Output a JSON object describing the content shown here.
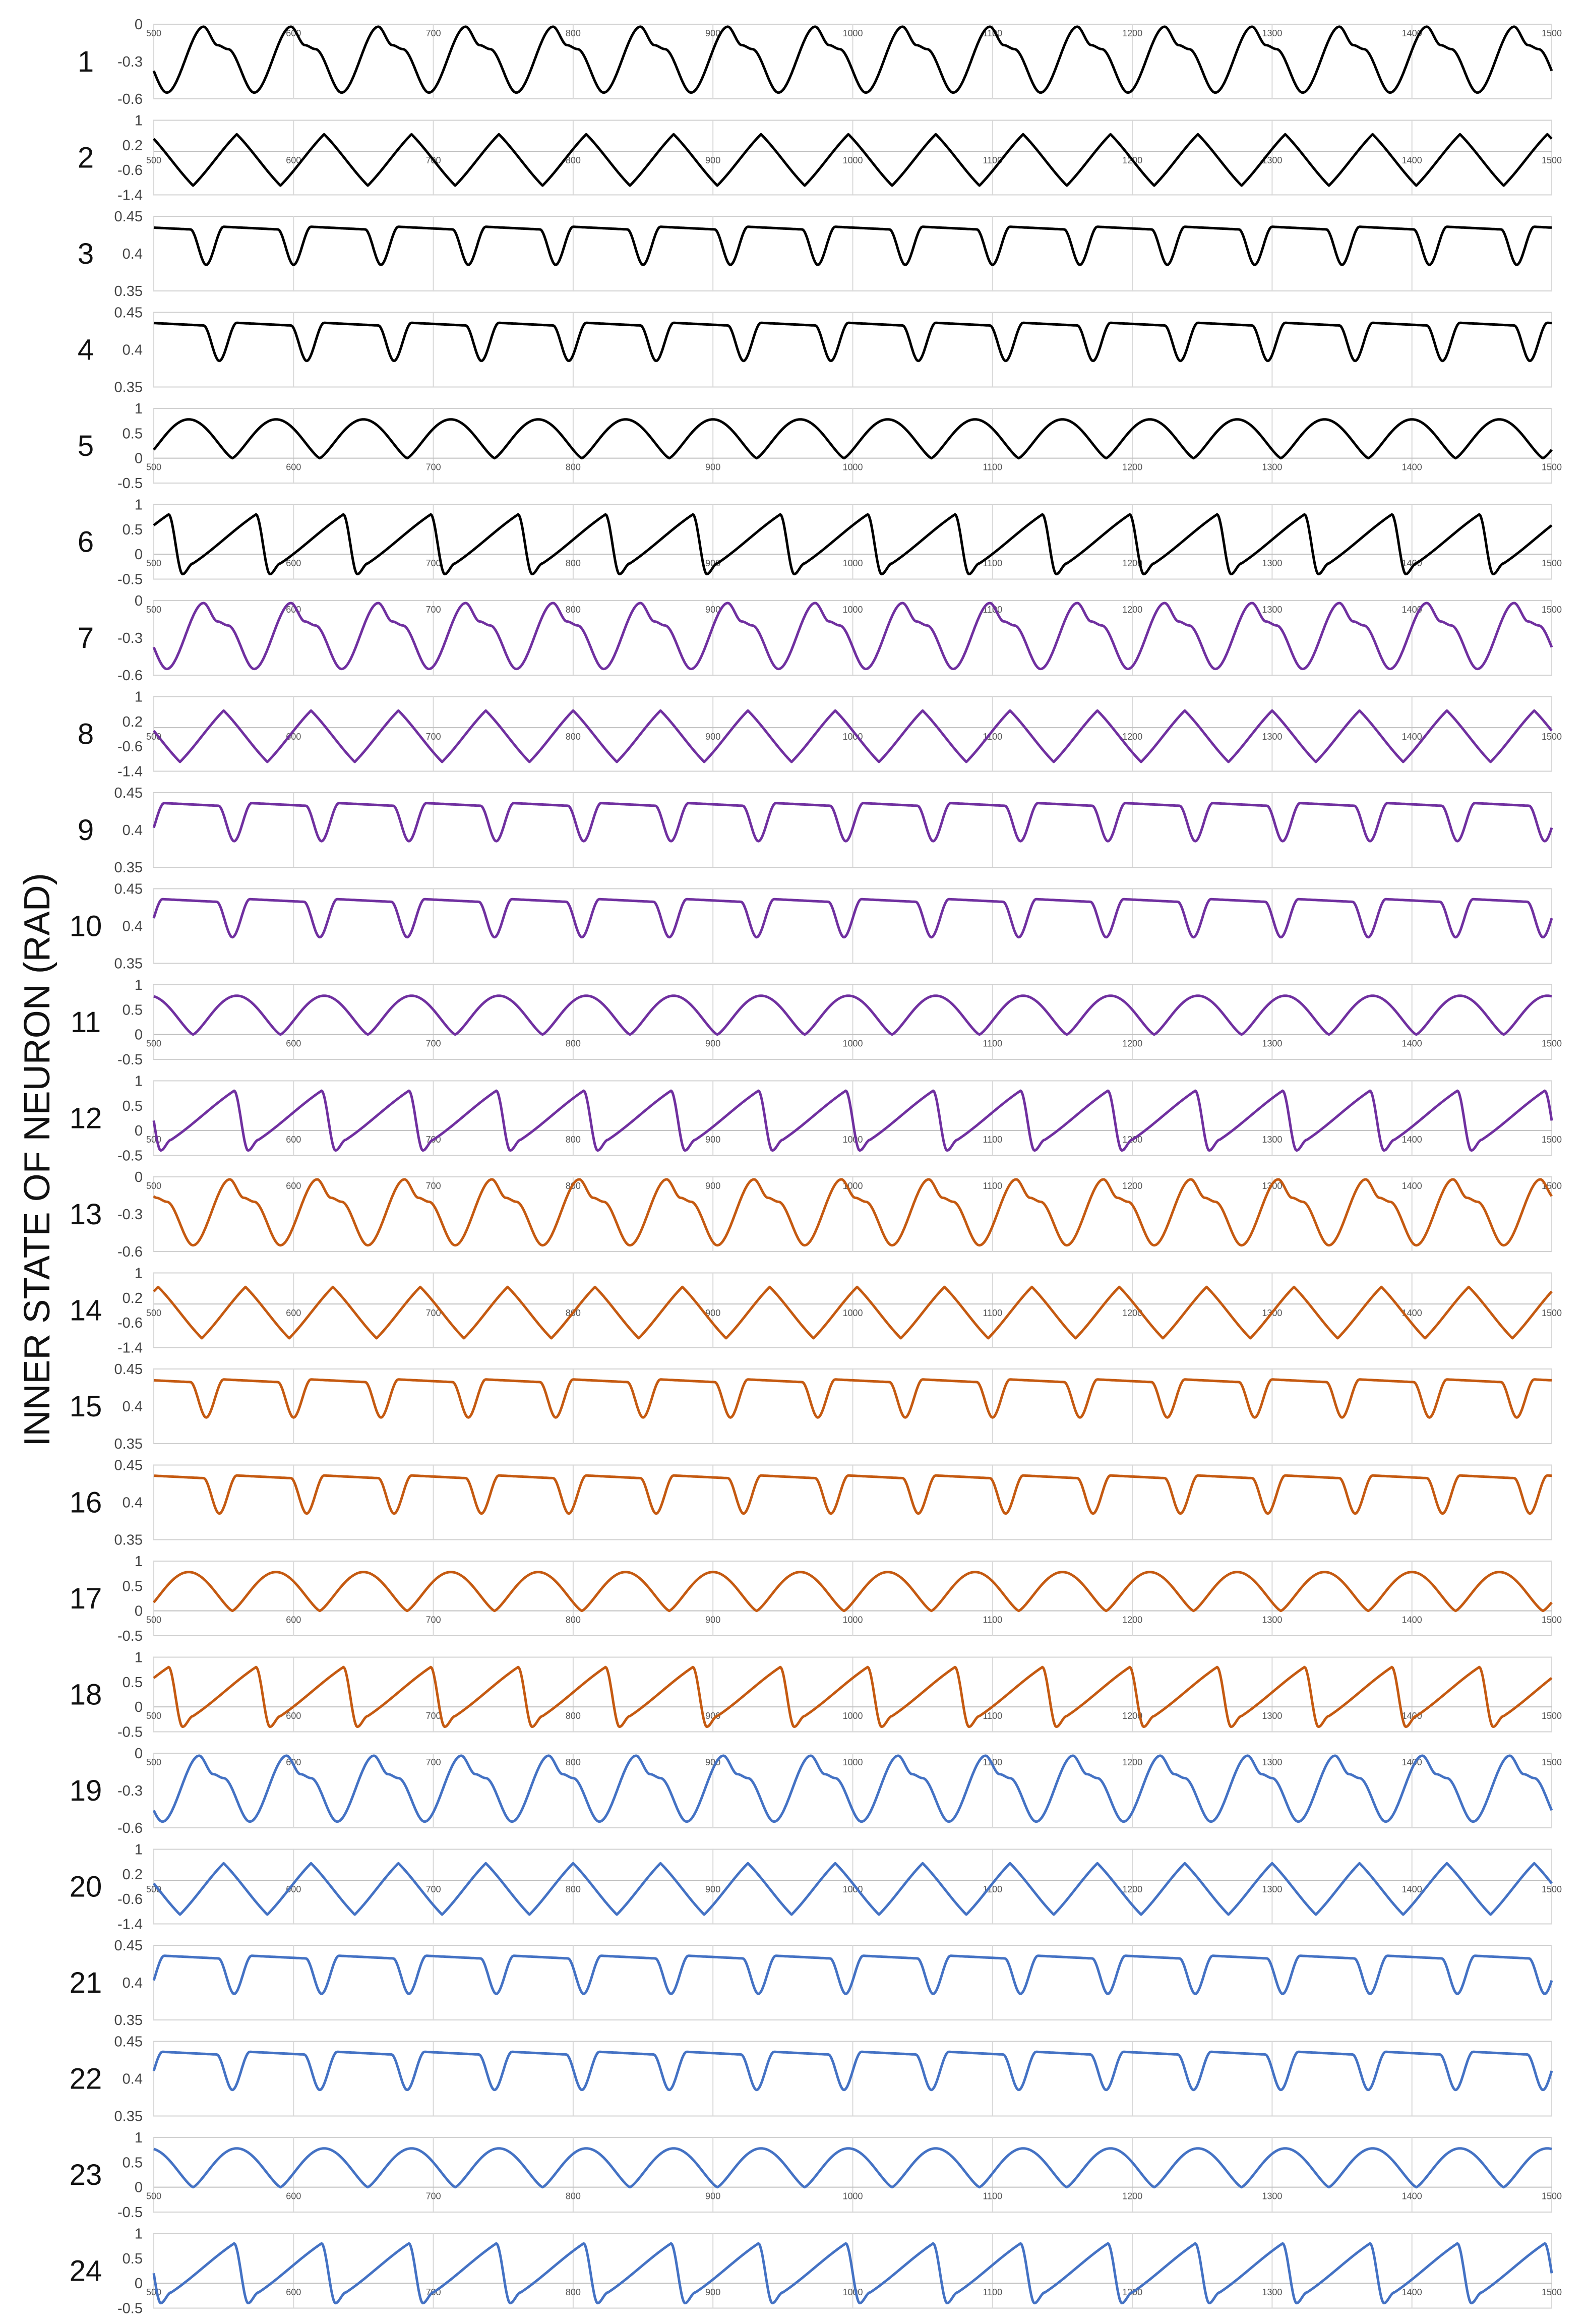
{
  "ylabel": "INNER STATE OF NEURON (RAD)",
  "colors": {
    "group1": "#000000",
    "group2": "#7030a0",
    "group3": "#c55a11",
    "group4": "#4472c4",
    "grid": "#d9d9d9",
    "frame": "#d0d0d0"
  },
  "chart_data": {
    "type": "line",
    "title": "",
    "ylabel": "INNER STATE OF NEURON (RAD)",
    "xlim": [
      500,
      1500
    ],
    "x_ticks": [
      500,
      600,
      700,
      800,
      900,
      1000,
      1100,
      1200,
      1300,
      1400,
      1500
    ],
    "grid": "vertical lines at each 100",
    "legend": "none",
    "period": 62.5,
    "panel_types": {
      "A": {
        "ylim": [
          -0.6,
          0
        ],
        "y_ticks": [
          "0",
          "-0.3",
          "-0.6"
        ],
        "xtick_row": "top",
        "waveform": "rounded peak near 0, shoulder on falling side, trough near -0.55",
        "peak_value": -0.02,
        "trough_value": -0.55
      },
      "B": {
        "ylim": [
          -1.4,
          1
        ],
        "y_ticks": [
          "1",
          "0.2",
          "-0.6",
          "-1.4"
        ],
        "xtick_row": "zero",
        "waveform": "triangle wave",
        "peak_value": 0.55,
        "trough_value": -1.1
      },
      "C": {
        "ylim": [
          0.35,
          0.45
        ],
        "y_ticks": [
          "0.45",
          "0.4",
          "0.35"
        ],
        "xtick_row": "none",
        "waveform": "flat plateau ~0.435 with sharp dips",
        "peak_value": 0.436,
        "trough_value": 0.385
      },
      "D": {
        "ylim": [
          -0.5,
          1
        ],
        "y_ticks": [
          "1",
          "0.5",
          "0",
          "-0.5"
        ],
        "xtick_row": "zero",
        "waveform": "smooth arches",
        "peak_value": 0.78,
        "trough_value": 0.0
      },
      "E": {
        "ylim": [
          -0.5,
          1
        ],
        "y_ticks": [
          "1",
          "0.5",
          "0",
          "-0.5"
        ],
        "xtick_row": "zero",
        "waveform": "sawtooth rise, sharp drop",
        "peak_value": 0.8,
        "trough_value": -0.4
      }
    },
    "series": [
      {
        "label": "1",
        "panel": "A",
        "color_key": "group1",
        "phase": 0.85
      },
      {
        "label": "2",
        "panel": "B",
        "color_key": "group1",
        "phase": 0.55
      },
      {
        "label": "3",
        "panel": "C",
        "color_key": "group1",
        "phase": 0.2
      },
      {
        "label": "4",
        "panel": "C",
        "color_key": "group1",
        "phase": 0.05
      },
      {
        "label": "5",
        "panel": "D",
        "color_key": "group1",
        "phase": 0.1
      },
      {
        "label": "6",
        "panel": "E",
        "color_key": "group1",
        "phase": 0.55
      },
      {
        "label": "7",
        "panel": "A",
        "color_key": "group2",
        "phase": 0.85
      },
      {
        "label": "8",
        "panel": "B",
        "color_key": "group2",
        "phase": 0.7
      },
      {
        "label": "9",
        "panel": "C",
        "color_key": "group2",
        "phase": 0.88
      },
      {
        "label": "10",
        "panel": "C",
        "color_key": "group2",
        "phase": 0.9
      },
      {
        "label": "11",
        "panel": "D",
        "color_key": "group2",
        "phase": 0.55
      },
      {
        "label": "12",
        "panel": "E",
        "color_key": "group2",
        "phase": 0.8
      },
      {
        "label": "13",
        "panel": "A",
        "color_key": "group3",
        "phase": 0.55
      },
      {
        "label": "14",
        "panel": "B",
        "color_key": "group3",
        "phase": 0.45
      },
      {
        "label": "15",
        "panel": "C",
        "color_key": "group3",
        "phase": 0.2
      },
      {
        "label": "16",
        "panel": "C",
        "color_key": "group3",
        "phase": 0.05
      },
      {
        "label": "17",
        "panel": "D",
        "color_key": "group3",
        "phase": 0.1
      },
      {
        "label": "18",
        "panel": "E",
        "color_key": "group3",
        "phase": 0.55
      },
      {
        "label": "19",
        "panel": "A",
        "color_key": "group4",
        "phase": 0.9
      },
      {
        "label": "20",
        "panel": "B",
        "color_key": "group4",
        "phase": 0.7
      },
      {
        "label": "21",
        "panel": "C",
        "color_key": "group4",
        "phase": 0.88
      },
      {
        "label": "22",
        "panel": "C",
        "color_key": "group4",
        "phase": 0.9
      },
      {
        "label": "23",
        "panel": "D",
        "color_key": "group4",
        "phase": 0.55
      },
      {
        "label": "24",
        "panel": "E",
        "color_key": "group4",
        "phase": 0.8
      }
    ]
  }
}
